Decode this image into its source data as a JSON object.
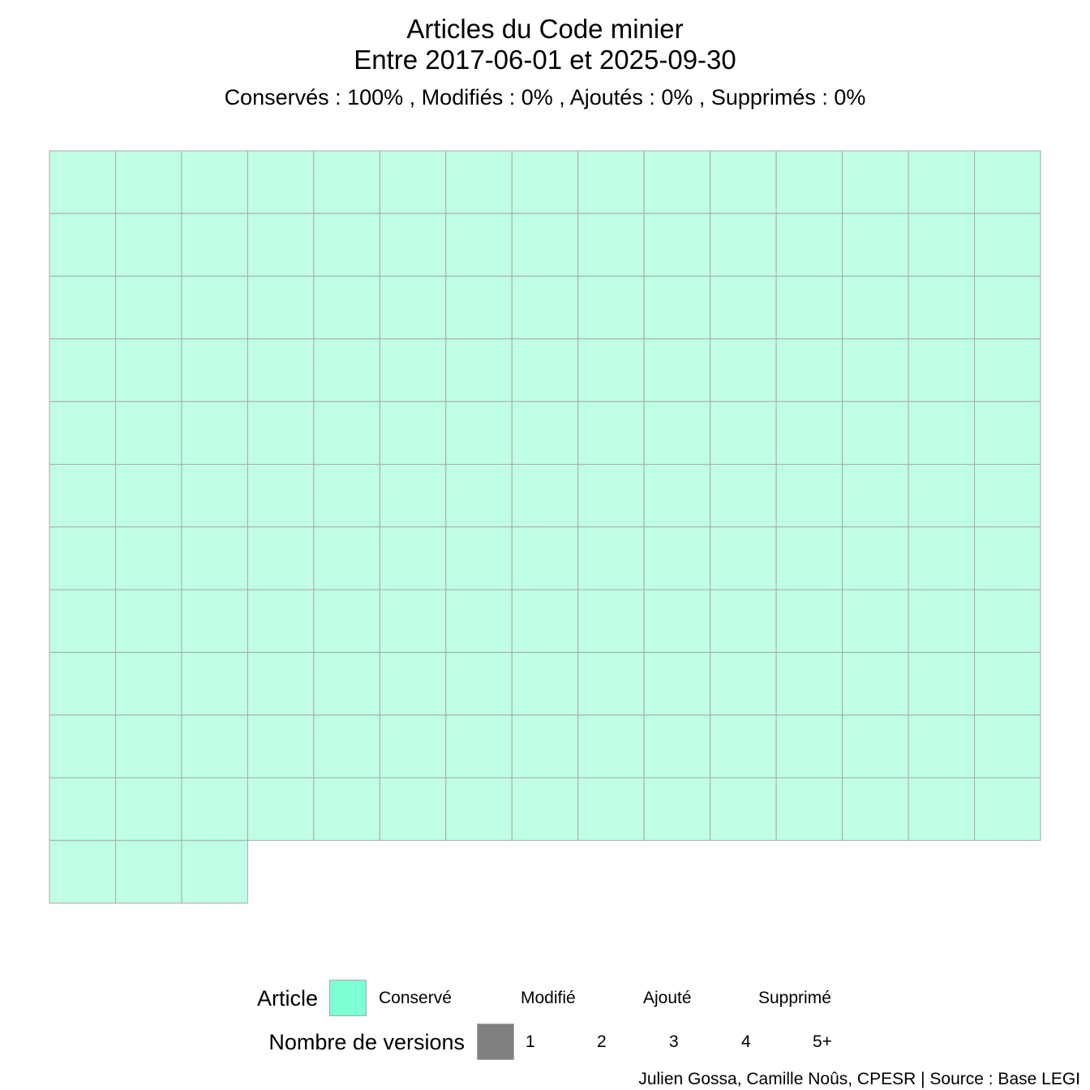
{
  "chart_data": {
    "type": "waffle",
    "title_line1": "Articles du Code minier",
    "title_line2": "Entre 2017-06-01 et 2025-09-30",
    "subtitle": "Conservés :  100% , Modifiés :  0% , Ajoutés :  0% , Supprimés :  0%",
    "columns": 15,
    "counts": {
      "Conservé": 168,
      "Modifié": 0,
      "Ajouté": 0,
      "Supprimé": 0
    },
    "percentages": {
      "Conservés": 100,
      "Modifiés": 0,
      "Ajoutés": 0,
      "Supprimés": 0
    },
    "versions": 1,
    "colors": {
      "conserve": "#BFFFE6",
      "conserve_key": "#7FFFD4",
      "cell_border": "#A9A9A9",
      "versions_key": "#808080"
    },
    "legend_article": {
      "title": "Article",
      "items": [
        "Conservé",
        "Modifié",
        "Ajouté",
        "Supprimé"
      ]
    },
    "legend_versions": {
      "title": "Nombre de versions",
      "items": [
        "1",
        "2",
        "3",
        "4",
        "5+"
      ]
    },
    "caption": "Julien Gossa, Camille Noûs, CPESR  |  Source : Base LEGI"
  }
}
